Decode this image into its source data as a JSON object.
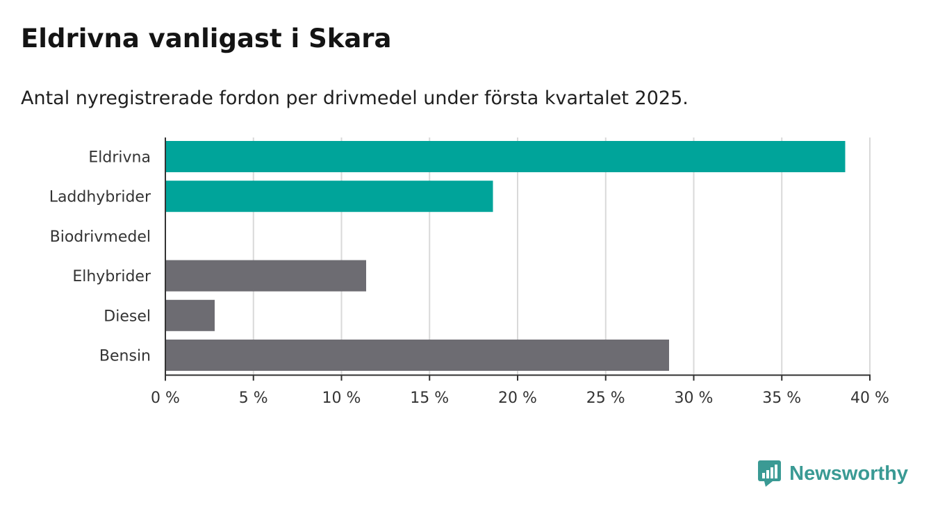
{
  "header": {
    "title": "Eldrivna vanligast i Skara",
    "subtitle": "Antal nyregistrerade fordon per drivmedel under första kvartalet 2025."
  },
  "brand": {
    "name": "Newsworthy",
    "icon": "newsworthy-logo-icon",
    "color": "#3a9a94"
  },
  "chart_data": {
    "type": "bar",
    "orientation": "horizontal",
    "categories": [
      "Eldrivna",
      "Laddhybrider",
      "Biodrivmedel",
      "Elhybrider",
      "Diesel",
      "Bensin"
    ],
    "values": [
      38.6,
      18.6,
      0,
      11.4,
      2.8,
      28.6
    ],
    "colors": [
      "#00a49a",
      "#00a49a",
      "#00a49a",
      "#6d6c72",
      "#6d6c72",
      "#6d6c72"
    ],
    "xlim": [
      0,
      40
    ],
    "xticks": [
      0,
      5,
      10,
      15,
      20,
      25,
      30,
      35,
      40
    ],
    "tick_labels": [
      "0 %",
      "5 %",
      "10 %",
      "15 %",
      "20 %",
      "25 %",
      "30 %",
      "35 %",
      "40 %"
    ],
    "grid": true
  }
}
